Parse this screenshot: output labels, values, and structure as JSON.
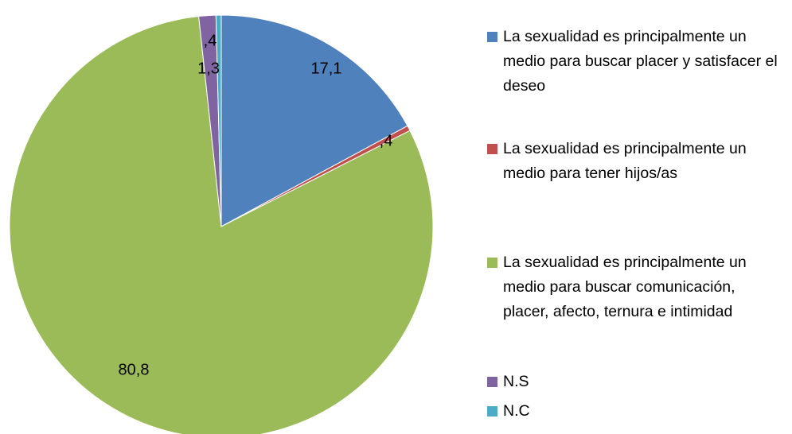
{
  "chart_data": {
    "type": "pie",
    "categories": [
      "La sexualidad es principalmente un medio para buscar placer y satisfacer el deseo",
      "La sexualidad es principalmente un medio para tener hijos/as",
      "La sexualidad es principalmente un medio para buscar comunicación, placer, afecto, ternura e intimidad",
      "N.S",
      "N.C"
    ],
    "values": [
      17.1,
      0.4,
      80.8,
      1.3,
      0.4
    ],
    "value_labels": [
      "17,1",
      ",4",
      "80,8",
      "1,3",
      ",4"
    ],
    "colors": [
      "#4f81bd",
      "#c0504d",
      "#9bbb59",
      "#8064a2",
      "#4bacc6"
    ],
    "legend": "right"
  }
}
